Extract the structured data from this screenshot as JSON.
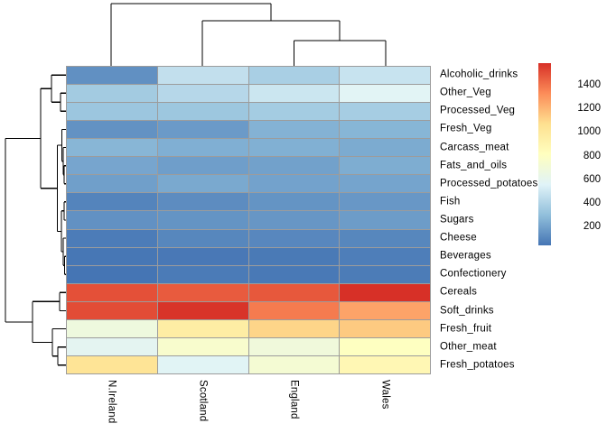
{
  "chart_data": {
    "type": "heatmap",
    "title": "",
    "columns": [
      "N.Ireland",
      "Scotland",
      "England",
      "Wales"
    ],
    "rows": [
      "Alcoholic_drinks",
      "Other_Veg",
      "Processed_Veg",
      "Fresh_Veg",
      "Carcass_meat",
      "Fats_and_oils",
      "Processed_potatoes",
      "Fish",
      "Sugars",
      "Cheese",
      "Beverages",
      "Confectionery",
      "Cereals",
      "Soft_drinks",
      "Fresh_fruit",
      "Other_meat",
      "Fresh_potatoes"
    ],
    "values": [
      [
        135,
        458,
        375,
        475
      ],
      [
        355,
        418,
        488,
        570
      ],
      [
        334,
        337,
        360,
        365
      ],
      [
        143,
        171,
        253,
        265
      ],
      [
        267,
        242,
        245,
        227
      ],
      [
        209,
        184,
        193,
        235
      ],
      [
        187,
        220,
        198,
        203
      ],
      [
        93,
        122,
        147,
        160
      ],
      [
        139,
        147,
        156,
        175
      ],
      [
        66,
        103,
        105,
        103
      ],
      [
        47,
        53,
        57,
        73
      ],
      [
        41,
        62,
        54,
        64
      ],
      [
        1494,
        1462,
        1472,
        1582
      ],
      [
        1506,
        1572,
        1374,
        1256
      ],
      [
        674,
        957,
        1102,
        1137
      ],
      [
        586,
        750,
        685,
        803
      ],
      [
        1033,
        566,
        720,
        874
      ]
    ],
    "value_min": 41,
    "value_max": 1582,
    "palette": [
      "#4575B4",
      "#91BFDB",
      "#E0F3F8",
      "#FFFFBF",
      "#FEE090",
      "#FC8D59",
      "#D73027"
    ],
    "grid_color": "#9C9C9C",
    "dendrogram_color": "#000000",
    "legend": {
      "ticks": [
        1400,
        1200,
        1000,
        800,
        600,
        400,
        200
      ]
    },
    "col_dendrogram": {
      "description": "England and Wales merge first, Scotland joins them, N.Ireland joins last",
      "segments": [
        [
          123,
          4,
          300,
          4
        ],
        [
          123,
          4,
          123,
          73
        ],
        [
          300,
          4,
          300,
          23
        ],
        [
          224,
          23,
          376,
          23
        ],
        [
          224,
          23,
          224,
          73
        ],
        [
          376,
          23,
          376,
          45
        ],
        [
          325.5,
          45,
          427,
          45
        ],
        [
          325.5,
          45,
          325.5,
          73
        ],
        [
          427,
          45,
          427,
          73
        ]
      ]
    },
    "row_dendrogram": {
      "description": "Two main clusters: low-value blue foods (rows 1-12) vs high-value warm foods (Cereals, Soft_drinks, Fresh_fruit, Other_meat, Fresh_potatoes)",
      "segments": [
        [
          67,
          103.2,
          67,
          123.3
        ],
        [
          67,
          103.2,
          73,
          103.2
        ],
        [
          67,
          123.3,
          73,
          123.3
        ],
        [
          57,
          83.1,
          57,
          113.2
        ],
        [
          57,
          83.1,
          73,
          83.1
        ],
        [
          57,
          113.2,
          67,
          113.2
        ],
        [
          71,
          183.6,
          71,
          203.7
        ],
        [
          71,
          183.6,
          73,
          183.6
        ],
        [
          71,
          203.7,
          73,
          203.7
        ],
        [
          70,
          163.5,
          70,
          193.6
        ],
        [
          70,
          163.5,
          73,
          163.5
        ],
        [
          70,
          193.6,
          71,
          193.6
        ],
        [
          68.5,
          143.4,
          68.5,
          178.6
        ],
        [
          68.5,
          143.4,
          73,
          143.4
        ],
        [
          68.5,
          178.6,
          70,
          178.6
        ],
        [
          71,
          223.8,
          71,
          243.9
        ],
        [
          71,
          223.8,
          73,
          223.8
        ],
        [
          71,
          243.9,
          73,
          243.9
        ],
        [
          71.5,
          284.1,
          71.5,
          304.2
        ],
        [
          71.5,
          284.1,
          73,
          284.1
        ],
        [
          71.5,
          304.2,
          73,
          304.2
        ],
        [
          70,
          264,
          70,
          294.1
        ],
        [
          70,
          264,
          73,
          264
        ],
        [
          70,
          294.1,
          71.5,
          294.1
        ],
        [
          68,
          233.8,
          68,
          279
        ],
        [
          68,
          233.8,
          71,
          233.8
        ],
        [
          68,
          279,
          70,
          279
        ],
        [
          63.5,
          161,
          63.5,
          256.4
        ],
        [
          63.5,
          161,
          68.5,
          161
        ],
        [
          63.5,
          256.4,
          68,
          256.4
        ],
        [
          45,
          98.2,
          45,
          208.7
        ],
        [
          45,
          98.2,
          57,
          98.2
        ],
        [
          45,
          208.7,
          63.5,
          208.7
        ],
        [
          66,
          324.3,
          66,
          344.4
        ],
        [
          66,
          324.3,
          73,
          324.3
        ],
        [
          66,
          344.4,
          73,
          344.4
        ],
        [
          64,
          384.6,
          64,
          404.7
        ],
        [
          64,
          384.6,
          73,
          384.6
        ],
        [
          64,
          404.7,
          73,
          404.7
        ],
        [
          58,
          364.5,
          58,
          394.6
        ],
        [
          58,
          364.5,
          73,
          364.5
        ],
        [
          58,
          394.6,
          64,
          394.6
        ],
        [
          36,
          334.3,
          36,
          379.5
        ],
        [
          36,
          334.3,
          66,
          334.3
        ],
        [
          36,
          379.5,
          58,
          379.5
        ],
        [
          6,
          153.4,
          6,
          356.9
        ],
        [
          6,
          153.4,
          45,
          153.4
        ],
        [
          6,
          356.9,
          36,
          356.9
        ]
      ]
    }
  }
}
